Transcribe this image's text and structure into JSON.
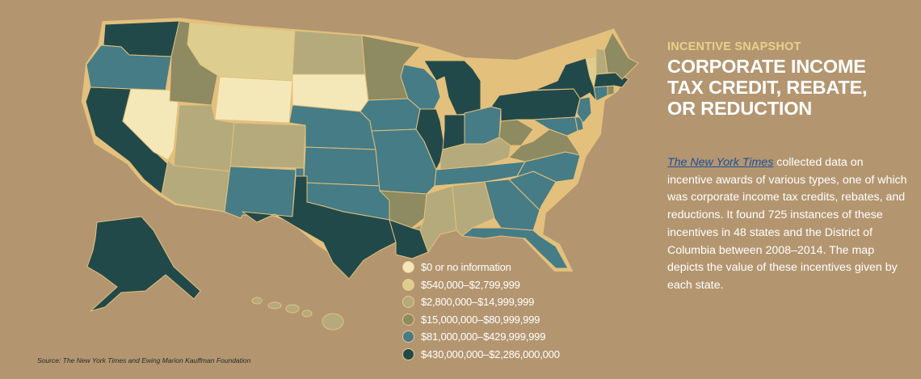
{
  "header": {
    "kicker": "INCENTIVE SNAPSHOT",
    "title_lines": [
      "CORPORATE INCOME",
      "TAX CREDIT, REBATE,",
      "OR REDUCTION"
    ]
  },
  "description": {
    "source_name": "The New York Times",
    "text": " collected data on incentive awards of various types, one of which was corporate income tax credits, rebates, and reductions. It found 725 instances of these incentives in 48 states and the District of Columbia between 2008–2014. The map depicts the value of these incentives given by each state."
  },
  "source_note": "Source: The New York Times and Ewing Marion Kauffman Foundation",
  "legend": [
    {
      "label": "$0 or no information",
      "color": "#f5e8b8"
    },
    {
      "label": "$540,000–$2,799,999",
      "color": "#ddce8f"
    },
    {
      "label": "$2,800,000–$14,999,999",
      "color": "#b5aa7c"
    },
    {
      "label": "$15,000,000–$80,999,999",
      "color": "#8e8a61"
    },
    {
      "label": "$81,000,000–$429,999,999",
      "color": "#467c85"
    },
    {
      "label": "$430,000,000–$2,286,000,000",
      "color": "#22494a"
    }
  ],
  "colors": {
    "background": "#b39670",
    "map_border": "#e3c07c",
    "kicker": "#e9d089",
    "title": "#ffffff"
  },
  "states": {
    "WA": 5,
    "OR": 4,
    "CA": 5,
    "NV": 0,
    "ID": 3,
    "MT": 1,
    "WY": 0,
    "UT": 2,
    "AZ": 2,
    "CO": 2,
    "NM": 4,
    "ND": 2,
    "SD": 0,
    "NE": 4,
    "KS": 4,
    "OK": 4,
    "TX": 5,
    "MN": 3,
    "IA": 4,
    "MO": 4,
    "AR": 3,
    "LA": 5,
    "WI": 4,
    "IL": 5,
    "MI": 5,
    "IN": 5,
    "OH": 4,
    "KY": 2,
    "TN": 4,
    "MS": 2,
    "AL": 2,
    "GA": 4,
    "FL": 4,
    "SC": 4,
    "NC": 4,
    "VA": 3,
    "WV": 3,
    "PA": 5,
    "NY": 5,
    "VT": 1,
    "NH": 2,
    "ME": 3,
    "MA": 5,
    "CT": 4,
    "RI": 3,
    "NJ": 4,
    "DE": 4,
    "MD": 4,
    "AK": 5,
    "HI": 2
  }
}
